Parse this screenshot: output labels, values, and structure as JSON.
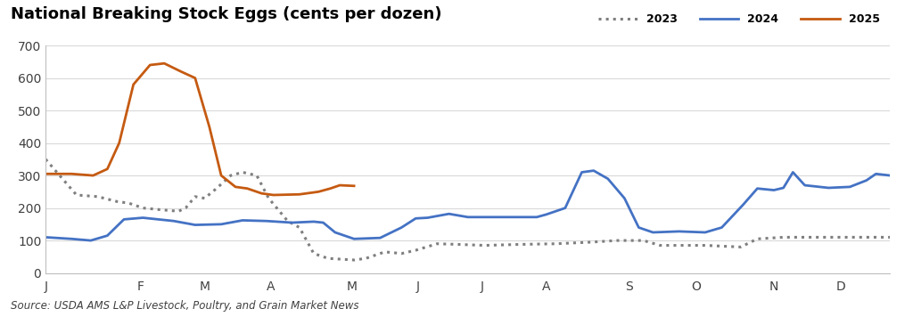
{
  "chart_data": {
    "type": "line",
    "title": "National Breaking Stock Eggs (cents per dozen)",
    "source": "Source: USDA AMS L&P Livestock, Poultry, and Grain Market News",
    "xlim": [
      0,
      356
    ],
    "xticks": [
      {
        "value": 0,
        "label": "J"
      },
      {
        "value": 40,
        "label": "F"
      },
      {
        "value": 67,
        "label": "M"
      },
      {
        "value": 95,
        "label": "A"
      },
      {
        "value": 129,
        "label": "M"
      },
      {
        "value": 157,
        "label": "J"
      },
      {
        "value": 184,
        "label": "J"
      },
      {
        "value": 211,
        "label": "A"
      },
      {
        "value": 246,
        "label": "S"
      },
      {
        "value": 274,
        "label": "O"
      },
      {
        "value": 307,
        "label": "N"
      },
      {
        "value": 335,
        "label": "D"
      }
    ],
    "ylim": [
      0,
      700
    ],
    "yticks": [
      0,
      100,
      200,
      300,
      400,
      500,
      600,
      700
    ],
    "grid": true,
    "legend": "upper right",
    "series": [
      {
        "name": "2023",
        "color": "#7f7f7f",
        "line_style": "dotted",
        "x": [
          0,
          13,
          22,
          30,
          35,
          41,
          48,
          56,
          59,
          63,
          67,
          72,
          78,
          83,
          89,
          94,
          102,
          107,
          113,
          119,
          130,
          135,
          143,
          150,
          156,
          165,
          174,
          185,
          200,
          215,
          230,
          241,
          252,
          259,
          278,
          293,
          300,
          311,
          356
        ],
        "values": [
          350,
          240,
          235,
          220,
          215,
          200,
          195,
          190,
          200,
          235,
          230,
          260,
          300,
          310,
          300,
          230,
          160,
          140,
          60,
          45,
          40,
          45,
          65,
          60,
          70,
          90,
          88,
          85,
          88,
          90,
          95,
          100,
          100,
          85,
          85,
          80,
          105,
          110,
          110
        ]
      },
      {
        "name": "2024",
        "color": "#4472c4",
        "line_style": "solid",
        "x": [
          0,
          11,
          19,
          26,
          33,
          41,
          54,
          63,
          74,
          83,
          93,
          104,
          113,
          117,
          122,
          130,
          141,
          150,
          156,
          161,
          170,
          178,
          193,
          207,
          211,
          219,
          226,
          231,
          237,
          244,
          250,
          256,
          267,
          278,
          285,
          294,
          300,
          307,
          311,
          315,
          320,
          330,
          339,
          346,
          350,
          356
        ],
        "values": [
          110,
          105,
          100,
          115,
          165,
          170,
          160,
          148,
          150,
          162,
          160,
          155,
          158,
          155,
          125,
          105,
          108,
          140,
          168,
          170,
          182,
          172,
          172,
          172,
          180,
          200,
          310,
          315,
          290,
          230,
          140,
          125,
          128,
          125,
          140,
          210,
          260,
          255,
          262,
          310,
          270,
          262,
          265,
          285,
          305,
          300
        ]
      },
      {
        "name": "2025",
        "color": "#c55a11",
        "line_style": "solid",
        "x": [
          0,
          11,
          20,
          26,
          31,
          37,
          44,
          50,
          57,
          63,
          69,
          74,
          80,
          85,
          91,
          96,
          107,
          115,
          120,
          124,
          130
        ],
        "values": [
          305,
          305,
          300,
          320,
          400,
          580,
          640,
          645,
          620,
          600,
          450,
          300,
          265,
          260,
          245,
          240,
          242,
          250,
          260,
          270,
          268
        ]
      }
    ]
  }
}
